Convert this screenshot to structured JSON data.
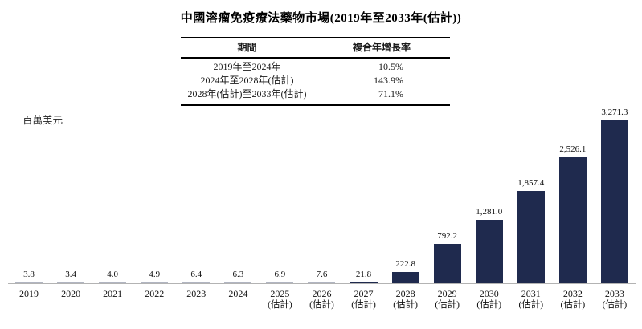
{
  "title": "中國溶瘤免疫療法藥物市場(2019年至2033年(估計))",
  "table": {
    "headers": [
      "期間",
      "複合年增長率"
    ],
    "rows": [
      {
        "period": "2019年至2024年",
        "cagr": "10.5%"
      },
      {
        "period": "2024年至2028年(估計)",
        "cagr": "143.9%"
      },
      {
        "period": "2028年(估計)至2033年(估計)",
        "cagr": "71.1%"
      }
    ]
  },
  "chart_data": {
    "type": "bar",
    "title": "中國溶瘤免疫療法藥物市場(2019年至2033年(估計))",
    "ylabel": "百萬美元",
    "xlabel": "",
    "ylim": [
      0,
      3400
    ],
    "grid": false,
    "legend": "none",
    "bar_color": "#1f2a4e",
    "axis_color": "#b3b3b3",
    "categories": [
      {
        "year": "2019",
        "note": ""
      },
      {
        "year": "2020",
        "note": ""
      },
      {
        "year": "2021",
        "note": ""
      },
      {
        "year": "2022",
        "note": ""
      },
      {
        "year": "2023",
        "note": ""
      },
      {
        "year": "2024",
        "note": ""
      },
      {
        "year": "2025",
        "note": "(估計)"
      },
      {
        "year": "2026",
        "note": "(估計)"
      },
      {
        "year": "2027",
        "note": "(估計)"
      },
      {
        "year": "2028",
        "note": "(估計)"
      },
      {
        "year": "2029",
        "note": "(估計)"
      },
      {
        "year": "2030",
        "note": "(估計)"
      },
      {
        "year": "2031",
        "note": "(估計)"
      },
      {
        "year": "2032",
        "note": "(估計)"
      },
      {
        "year": "2033",
        "note": "(估計)"
      }
    ],
    "values": [
      3.8,
      3.4,
      4.0,
      4.9,
      6.4,
      6.3,
      6.9,
      7.6,
      21.8,
      222.8,
      792.2,
      1281.0,
      1857.4,
      2526.1,
      3271.3
    ],
    "value_labels": [
      "3.8",
      "3.4",
      "4.0",
      "4.9",
      "6.4",
      "6.3",
      "6.9",
      "7.6",
      "21.8",
      "222.8",
      "792.2",
      "1,281.0",
      "1,857.4",
      "2,526.1",
      "3,271.3"
    ]
  }
}
